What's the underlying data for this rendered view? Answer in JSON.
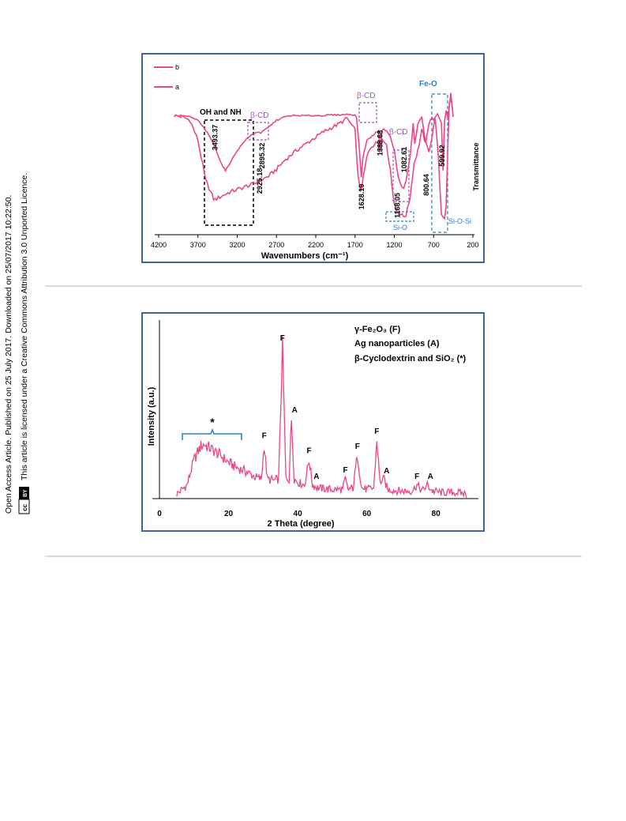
{
  "side_note": {
    "line1": "Open Access Article. Published on 25 July 2017. Downloaded on 25/07/2017 10:22:50.",
    "line2": "This article is licensed under a Creative Commons Attribution 3.0 Unported Licence.",
    "badge_cc": "cc",
    "badge_by": "BY"
  },
  "colors": {
    "curve": "#e8488a",
    "panel_border": "#3d63a6",
    "beta_cd": "#9b59b6",
    "fe_o": "#2e7dc7",
    "black_box": "#000000"
  },
  "chart_data": [
    {
      "type": "line",
      "xlabel": "Wavenumbers (cm⁻¹)",
      "ylabel": "Transmittance",
      "xlim": [
        4200,
        200
      ],
      "x_reversed": true,
      "xticks": [
        "4200",
        "3700",
        "3200",
        "2700",
        "2200",
        "1700",
        "1200",
        "700",
        "200"
      ],
      "legend": {
        "position": "top-left",
        "entries": [
          "b",
          "a"
        ]
      },
      "series": [
        {
          "name": "b",
          "x": [
            4000,
            3900,
            3800,
            3700,
            3600,
            3500,
            3480,
            3400,
            3300,
            3200,
            3100,
            3000,
            2925,
            2895,
            2800,
            2700,
            2600,
            2500,
            2400,
            2300,
            2200,
            2100,
            2000,
            1900,
            1800,
            1700,
            1660,
            1640,
            1628,
            1610,
            1580,
            1550,
            1500,
            1450,
            1400,
            1388,
            1350,
            1300,
            1250,
            1200,
            1168,
            1120,
            1082,
            1050,
            1000,
            950,
            900,
            850,
            800,
            760,
            720,
            680,
            640,
            600,
            560,
            540,
            520,
            500,
            480,
            450
          ],
          "y": [
            0.62,
            0.6,
            0.55,
            0.25,
            -0.35,
            -0.62,
            -0.63,
            -0.58,
            -0.52,
            -0.48,
            -0.44,
            -0.4,
            -0.36,
            -0.34,
            -0.28,
            -0.18,
            -0.05,
            0.05,
            0.14,
            0.22,
            0.3,
            0.38,
            0.44,
            0.5,
            0.58,
            0.4,
            -0.3,
            -0.45,
            -0.5,
            -0.4,
            -0.2,
            0.0,
            0.15,
            0.2,
            0.22,
            0.1,
            0.25,
            0.2,
            -0.2,
            -0.7,
            -0.8,
            -0.85,
            -0.88,
            -0.86,
            -0.6,
            -0.1,
            0.1,
            0.4,
            0.2,
            0.1,
            0.3,
            0.6,
            0.0,
            -0.85,
            -0.9,
            -0.7,
            0.1,
            0.8,
            0.9,
            0.6
          ]
        },
        {
          "name": "a",
          "x": [
            4000,
            3900,
            3800,
            3700,
            3600,
            3500,
            3450,
            3400,
            3350,
            3300,
            3200,
            3100,
            3000,
            2925,
            2900,
            2800,
            2700,
            2600,
            2500,
            2400,
            2300,
            2200,
            2100,
            2000,
            1900,
            1800,
            1700,
            1680,
            1650,
            1620,
            1600,
            1550,
            1500,
            1450,
            1400,
            1388,
            1350,
            1300,
            1250,
            1200,
            1150,
            1100,
            1080,
            1050,
            1000,
            960,
            940,
            900,
            850,
            800,
            760,
            720,
            700,
            650,
            600,
            580,
            560,
            540,
            520,
            500,
            480,
            460
          ],
          "y": [
            0.62,
            0.62,
            0.6,
            0.55,
            0.4,
            0.2,
            0.05,
            -0.1,
            -0.2,
            -0.1,
            0.1,
            0.25,
            0.35,
            0.38,
            0.36,
            0.45,
            0.55,
            0.6,
            0.62,
            0.62,
            0.62,
            0.62,
            0.62,
            0.63,
            0.63,
            0.64,
            0.63,
            0.58,
            0.2,
            -0.3,
            0.0,
            0.25,
            0.3,
            0.35,
            0.4,
            0.15,
            0.42,
            0.4,
            0.3,
            0.1,
            -0.3,
            -0.45,
            -0.47,
            -0.35,
            0.0,
            0.5,
            0.2,
            0.5,
            0.6,
            0.2,
            0.5,
            0.6,
            0.55,
            0.65,
            0.5,
            -0.2,
            0.55,
            0.7,
            0.6,
            0.75,
            0.95,
            0.7
          ]
        }
      ],
      "peak_labels": [
        "3493.37",
        "2925.18",
        "2895.32",
        "1628.19",
        "1388.68",
        "1168.05",
        "1082.61",
        "800.64",
        "599.92"
      ],
      "group_labels": [
        "OH and NH",
        "β-CD",
        "β-CD",
        "β-CD",
        "Fe-O",
        "Si-O",
        "Si-O-Si"
      ]
    },
    {
      "type": "line",
      "xlabel": "2 Theta (degree)",
      "ylabel": "Intensity (a.u.)",
      "xlim": [
        0,
        90
      ],
      "xticks": [
        "0",
        "20",
        "40",
        "60",
        "80"
      ],
      "series": [
        {
          "x": [
            5,
            8,
            10,
            12,
            13,
            15,
            18,
            20,
            22,
            25,
            28,
            29.5,
            30.3,
            31.2,
            33,
            34.5,
            35.6,
            36.6,
            37.5,
            38.2,
            39,
            40,
            42,
            43.3,
            44.3,
            46,
            50,
            53,
            53.8,
            54.5,
            56,
            57.3,
            58.5,
            60,
            62,
            62.9,
            63.8,
            65,
            66,
            70,
            73,
            74.5,
            76,
            77.5,
            79,
            82,
            86,
            89
          ],
          "y": [
            0.02,
            0.08,
            0.25,
            0.34,
            0.35,
            0.32,
            0.27,
            0.23,
            0.2,
            0.17,
            0.13,
            0.12,
            0.35,
            0.12,
            0.11,
            0.12,
            1.0,
            0.12,
            0.12,
            0.52,
            0.12,
            0.1,
            0.08,
            0.25,
            0.08,
            0.06,
            0.05,
            0.05,
            0.12,
            0.05,
            0.06,
            0.28,
            0.06,
            0.05,
            0.06,
            0.38,
            0.1,
            0.12,
            0.05,
            0.04,
            0.04,
            0.08,
            0.04,
            0.08,
            0.04,
            0.03,
            0.03,
            0.02
          ]
        }
      ],
      "legend_lines": [
        "γ-Fe₂O₃ (F)",
        "Ag nanoparticles (A)",
        "β-Cyclodextrin and SiO₂ (*)"
      ],
      "peak_markers": [
        {
          "label": "F",
          "x": 30.3
        },
        {
          "label": "F",
          "x": 35.6
        },
        {
          "label": "A",
          "x": 38.2
        },
        {
          "label": "F",
          "x": 43.3
        },
        {
          "label": "A",
          "x": 44.5
        },
        {
          "label": "F",
          "x": 53.8
        },
        {
          "label": "F",
          "x": 57.3
        },
        {
          "label": "F",
          "x": 62.9
        },
        {
          "label": "A",
          "x": 64.8
        },
        {
          "label": "F",
          "x": 74.5
        },
        {
          "label": "A",
          "x": 77.5
        }
      ],
      "amorphous_marker": "*"
    }
  ]
}
